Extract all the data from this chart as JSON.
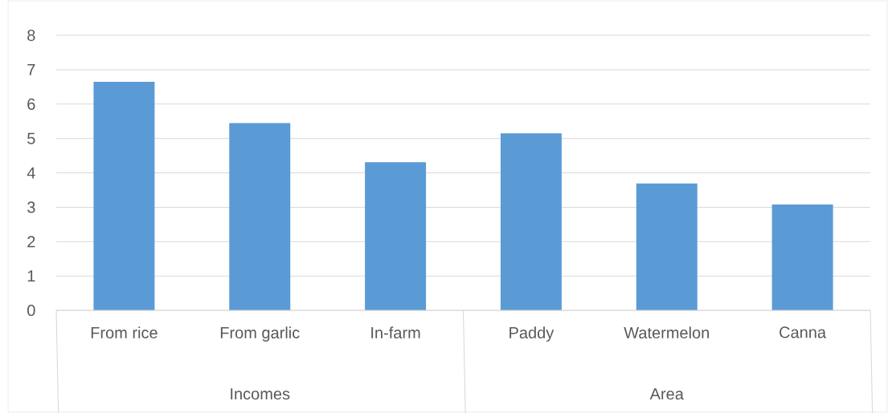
{
  "chart_data": {
    "type": "bar",
    "categories": [
      "From rice",
      "From garlic",
      "In-farm",
      "Paddy",
      "Watermelon",
      "Canna"
    ],
    "values": [
      6.65,
      5.45,
      4.31,
      5.15,
      3.69,
      3.08
    ],
    "color": "#5b9bd5",
    "ylim": [
      0,
      8
    ],
    "yticks": [
      0,
      1,
      2,
      3,
      4,
      5,
      6,
      7,
      8
    ],
    "grid": "y",
    "annotations": [
      "Incomes",
      "Area"
    ]
  }
}
